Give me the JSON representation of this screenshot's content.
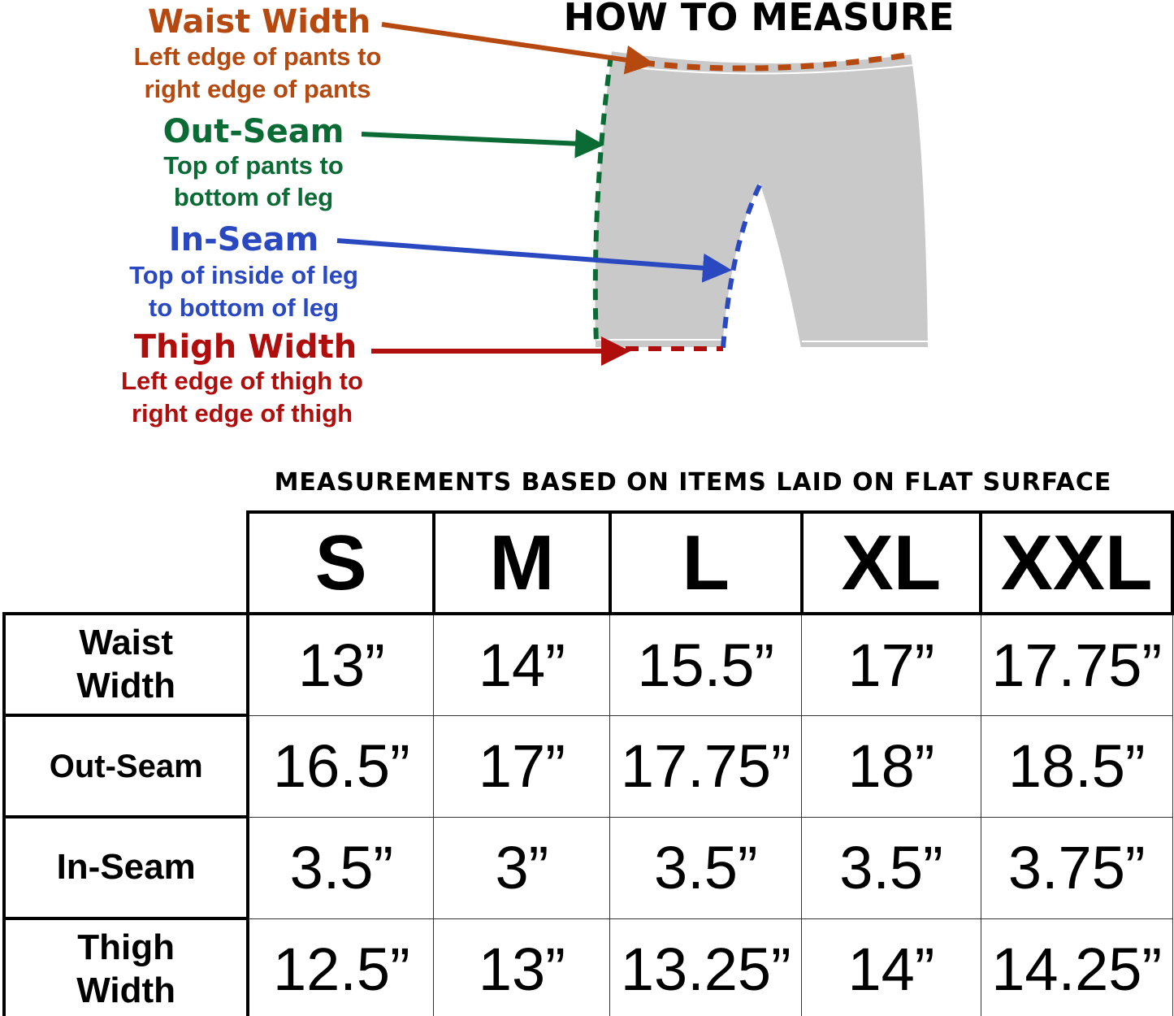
{
  "title": "HOW TO MEASURE",
  "labels": {
    "waist": {
      "name": "Waist Width",
      "desc1": "Left edge of pants to",
      "desc2": "right edge of pants",
      "color": "#b5490f"
    },
    "outseam": {
      "name": "Out-Seam",
      "desc1": "Top of pants to",
      "desc2": "bottom of leg",
      "color": "#0b6b35"
    },
    "inseam": {
      "name": "In-Seam",
      "desc1": "Top of inside of leg",
      "desc2": "to bottom of leg",
      "color": "#2a49c0"
    },
    "thigh": {
      "name": "Thigh Width",
      "desc1": "Left edge of thigh to",
      "desc2": "right edge of thigh",
      "color": "#b00d0d"
    }
  },
  "note": "MEASUREMENTS BASED ON ITEMS LAID ON FLAT SURFACE",
  "table": {
    "sizes": [
      "S",
      "M",
      "L",
      "XL",
      "XXL"
    ],
    "rows": [
      {
        "label": "Waist Width",
        "values": [
          "13”",
          "14”",
          "15.5”",
          "17”",
          "17.75”"
        ]
      },
      {
        "label": "Out-Seam",
        "values": [
          "16.5”",
          "17”",
          "17.75”",
          "18”",
          "18.5”"
        ]
      },
      {
        "label": "In-Seam",
        "values": [
          "3.5”",
          "3”",
          "3.5”",
          "3.5”",
          "3.75”"
        ]
      },
      {
        "label": "Thigh Width",
        "values": [
          "12.5”",
          "13”",
          "13.25”",
          "14”",
          "14.25”"
        ]
      }
    ]
  }
}
